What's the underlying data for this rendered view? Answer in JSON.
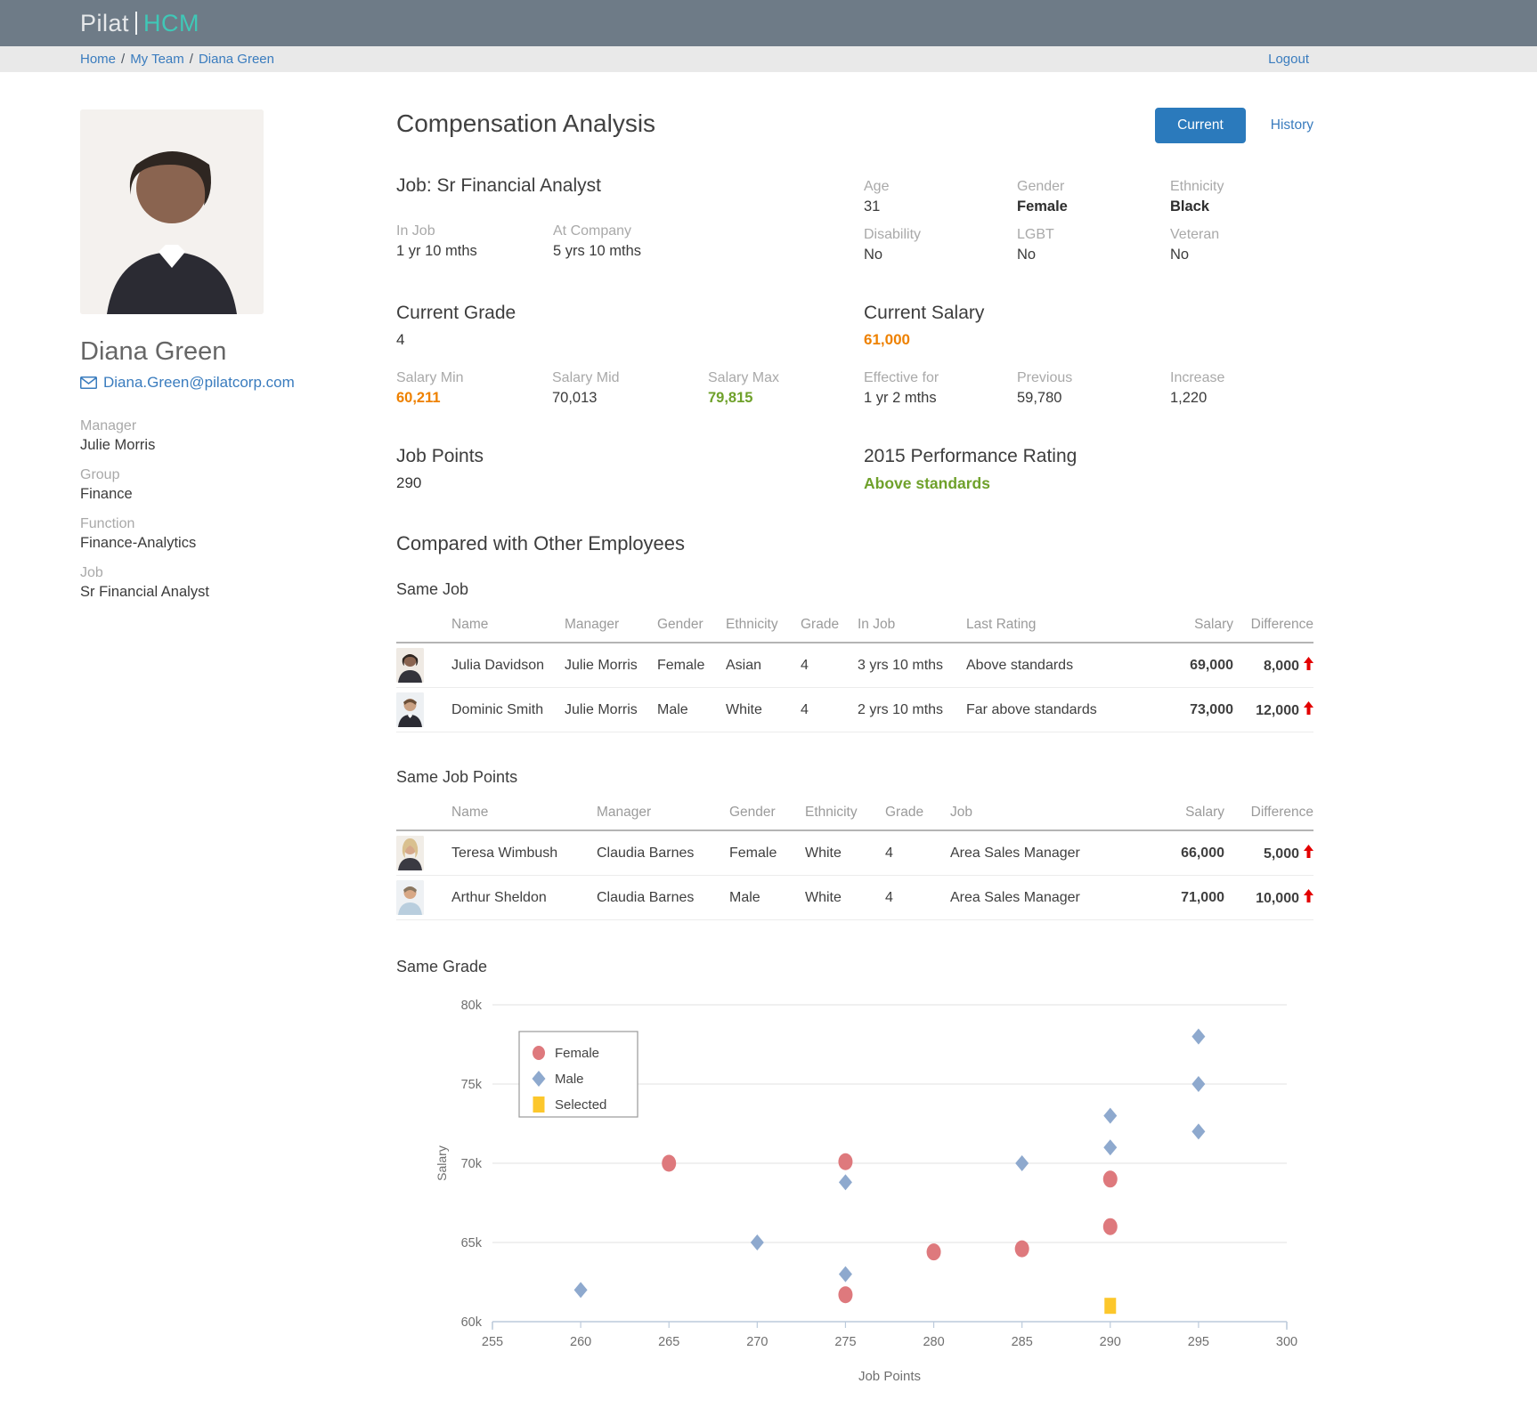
{
  "header": {
    "brand_pilat": "Pilat",
    "brand_hcm": "HCM"
  },
  "breadcrumb": {
    "items": [
      "Home",
      "My Team",
      "Diana Green"
    ],
    "separator": "/",
    "logout_label": "Logout"
  },
  "profile": {
    "name": "Diana Green",
    "email": "Diana.Green@pilatcorp.com",
    "fields": [
      {
        "label": "Manager",
        "value": "Julie Morris"
      },
      {
        "label": "Group",
        "value": "Finance"
      },
      {
        "label": "Function",
        "value": "Finance-Analytics"
      },
      {
        "label": "Job",
        "value": "Sr Financial Analyst"
      }
    ]
  },
  "page": {
    "title": "Compensation Analysis",
    "current_label": "Current",
    "history_label": "History"
  },
  "job_section": {
    "title": "Job: Sr Financial Analyst",
    "stats": [
      {
        "label": "In Job",
        "value": "1 yr 10 mths"
      },
      {
        "label": "At Company",
        "value": "5 yrs 10 mths"
      }
    ],
    "demographics": [
      {
        "label": "Age",
        "value": "31"
      },
      {
        "label": "Gender",
        "value": "Female"
      },
      {
        "label": "Ethnicity",
        "value": "Black"
      },
      {
        "label": "Disability",
        "value": "No"
      },
      {
        "label": "LGBT",
        "value": "No"
      },
      {
        "label": "Veteran",
        "value": "No"
      }
    ]
  },
  "grade_section": {
    "title": "Current Grade",
    "value": "4",
    "stats": [
      {
        "label": "Salary Min",
        "value": "60,211"
      },
      {
        "label": "Salary Mid",
        "value": "70,013"
      },
      {
        "label": "Salary Max",
        "value": "79,815"
      }
    ]
  },
  "salary_section": {
    "title": "Current Salary",
    "value": "61,000",
    "stats": [
      {
        "label": "Effective for",
        "value": "1 yr 2 mths"
      },
      {
        "label": "Previous",
        "value": "59,780"
      },
      {
        "label": "Increase",
        "value": "1,220"
      }
    ]
  },
  "points_section": {
    "title": "Job Points",
    "value": "290"
  },
  "rating_section": {
    "title": "2015 Performance Rating",
    "value": "Above standards"
  },
  "compare": {
    "title": "Compared with Other Employees",
    "same_job": {
      "title": "Same Job",
      "columns": [
        "Name",
        "Manager",
        "Gender",
        "Ethnicity",
        "Grade",
        "In Job",
        "Last Rating",
        "Salary",
        "Difference"
      ],
      "rows": [
        {
          "name": "Julia Davidson",
          "manager": "Julie Morris",
          "gender": "Female",
          "ethnicity": "Asian",
          "grade": "4",
          "in_job": "3 yrs 10 mths",
          "last_rating": "Above standards",
          "salary": "69,000",
          "difference": "8,000",
          "direction": "up"
        },
        {
          "name": "Dominic Smith",
          "manager": "Julie Morris",
          "gender": "Male",
          "ethnicity": "White",
          "grade": "4",
          "in_job": "2 yrs 10 mths",
          "last_rating": "Far above standards",
          "salary": "73,000",
          "difference": "12,000",
          "direction": "up"
        }
      ]
    },
    "same_job_points": {
      "title": "Same Job Points",
      "columns": [
        "Name",
        "Manager",
        "Gender",
        "Ethnicity",
        "Grade",
        "Job",
        "Salary",
        "Difference"
      ],
      "rows": [
        {
          "name": "Teresa Wimbush",
          "manager": "Claudia Barnes",
          "gender": "Female",
          "ethnicity": "White",
          "grade": "4",
          "job": "Area Sales Manager",
          "salary": "66,000",
          "difference": "5,000",
          "direction": "up"
        },
        {
          "name": "Arthur Sheldon",
          "manager": "Claudia Barnes",
          "gender": "Male",
          "ethnicity": "White",
          "grade": "4",
          "job": "Area Sales Manager",
          "salary": "71,000",
          "difference": "10,000",
          "direction": "up"
        }
      ]
    },
    "same_grade_title": "Same Grade"
  },
  "colors": {
    "topbar": "#6e7b87",
    "brand_teal": "#3fc8b7",
    "link_blue": "#3a7cbe",
    "button_blue": "#2b7abc",
    "orange": "#ee8100",
    "green": "#6fa12b",
    "red": "#e30000",
    "female_marker": "#de797d",
    "male_marker": "#8ea9ce",
    "selected_marker": "#fcc72c"
  },
  "chart_data": {
    "type": "scatter",
    "title": "Same Grade",
    "xlabel": "Job Points",
    "ylabel": "Salary",
    "xlim": [
      255,
      300
    ],
    "ylim": [
      60000,
      80000
    ],
    "x_ticks": [
      255,
      260,
      265,
      270,
      275,
      280,
      285,
      290,
      295,
      300
    ],
    "y_ticks": [
      60000,
      65000,
      70000,
      75000,
      80000
    ],
    "y_tick_labels": [
      "60k",
      "65k",
      "70k",
      "75k",
      "80k"
    ],
    "grid": "horizontal",
    "legend_position": "top-left-inside",
    "legend": [
      "Female",
      "Male",
      "Selected"
    ],
    "series": [
      {
        "name": "Female",
        "marker": "circle",
        "color": "#de797d",
        "points": [
          [
            265,
            70000
          ],
          [
            275,
            70100
          ],
          [
            275,
            61700
          ],
          [
            280,
            64400
          ],
          [
            285,
            64600
          ],
          [
            290,
            66000
          ],
          [
            290,
            69000
          ]
        ]
      },
      {
        "name": "Male",
        "marker": "diamond",
        "color": "#8ea9ce",
        "points": [
          [
            260,
            62000
          ],
          [
            270,
            65000
          ],
          [
            275,
            63000
          ],
          [
            275,
            68800
          ],
          [
            285,
            70000
          ],
          [
            290,
            71000
          ],
          [
            290,
            73000
          ],
          [
            295,
            72000
          ],
          [
            295,
            75000
          ],
          [
            295,
            78000
          ]
        ]
      },
      {
        "name": "Selected",
        "marker": "square",
        "color": "#fcc72c",
        "points": [
          [
            290,
            61000
          ]
        ]
      }
    ]
  }
}
